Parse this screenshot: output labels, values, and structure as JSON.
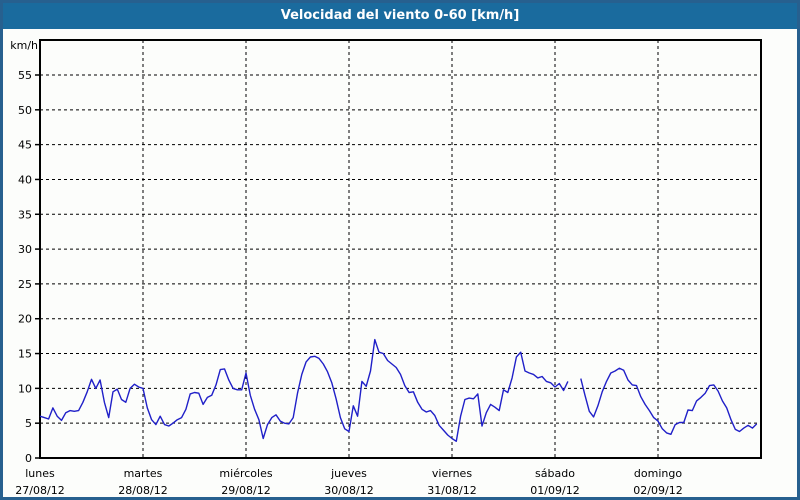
{
  "window": {
    "frame_border_color": "#27608f",
    "background_color": "#fcfdfb"
  },
  "title_bar": {
    "text": "Velocidad del viento 0-60 [km/h]",
    "bg_color": "#1a6b9e",
    "text_color": "#ffffff"
  },
  "chart_data": {
    "type": "line",
    "title": "Velocidad del viento 0-60 [km/h]",
    "unit_label": "km/h",
    "ylabel": "km/h",
    "ylim": [
      0,
      60
    ],
    "yticks": [
      0,
      5,
      10,
      15,
      20,
      25,
      30,
      35,
      40,
      45,
      50,
      55
    ],
    "grid": "dashed",
    "grid_color": "#000000",
    "axis_color": "#000000",
    "line_color": "#2020c8",
    "legend": "none",
    "points_per_day": 24,
    "categories": [
      {
        "name": "lunes",
        "date": "27/08/12"
      },
      {
        "name": "martes",
        "date": "28/08/12"
      },
      {
        "name": "miércoles",
        "date": "29/08/12"
      },
      {
        "name": "jueves",
        "date": "30/08/12"
      },
      {
        "name": "viernes",
        "date": "31/08/12"
      },
      {
        "name": "sábado",
        "date": "01/09/12"
      },
      {
        "name": "domingo",
        "date": "02/09/12"
      }
    ],
    "series": [
      {
        "name": "Velocidad del viento [km/h]",
        "values": [
          6.0,
          5.8,
          5.6,
          7.2,
          6.0,
          5.4,
          6.5,
          6.8,
          6.7,
          6.8,
          8.0,
          9.5,
          11.3,
          10.0,
          11.2,
          8.0,
          5.8,
          9.5,
          9.9,
          8.4,
          8.0,
          10.0,
          10.6,
          10.2,
          10.0,
          7.2,
          5.5,
          4.8,
          6.0,
          4.8,
          4.6,
          5.0,
          5.5,
          5.8,
          7.0,
          9.2,
          9.4,
          9.3,
          7.7,
          8.7,
          9.0,
          10.5,
          12.7,
          12.8,
          11.2,
          10.0,
          9.8,
          9.8,
          12.2,
          9.0,
          7.0,
          5.5,
          2.8,
          4.8,
          5.8,
          6.2,
          5.3,
          5.0,
          4.9,
          5.8,
          9.3,
          12.0,
          13.8,
          14.5,
          14.6,
          14.3,
          13.5,
          12.4,
          10.8,
          8.5,
          5.8,
          4.2,
          3.8,
          7.5,
          6.0,
          11.0,
          10.3,
          12.5,
          17.0,
          15.2,
          15.0,
          14.0,
          13.5,
          13.0,
          12.0,
          10.4,
          9.4,
          9.5,
          8.0,
          7.0,
          6.6,
          6.8,
          6.1,
          4.7,
          4.0,
          3.3,
          2.8,
          2.4,
          6.0,
          8.4,
          8.6,
          8.5,
          9.2,
          4.6,
          6.5,
          7.7,
          7.3,
          6.8,
          9.8,
          9.4,
          11.5,
          14.5,
          15.2,
          12.5,
          12.2,
          12.0,
          11.5,
          11.7,
          11.0,
          10.8,
          10.2,
          10.7,
          9.7,
          11.0,
          null,
          null,
          11.4,
          9.0,
          6.7,
          5.9,
          7.5,
          9.5,
          11.0,
          12.2,
          12.5,
          12.9,
          12.6,
          11.2,
          10.5,
          10.4,
          8.8,
          7.7,
          6.8,
          5.8,
          5.3,
          4.2,
          3.6,
          3.4,
          4.8,
          5.1,
          5.1,
          6.9,
          6.8,
          8.2,
          8.7,
          9.3,
          10.4,
          10.5,
          9.6,
          8.2,
          7.2,
          5.5,
          4.1,
          3.8,
          4.3,
          4.7,
          4.3,
          4.9
        ]
      }
    ]
  }
}
